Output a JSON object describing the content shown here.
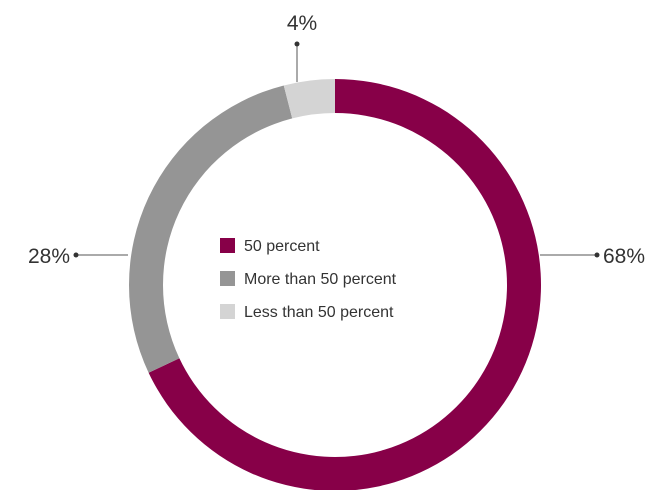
{
  "chart_data": {
    "type": "pie",
    "variant": "donut",
    "title": "",
    "start_angle_deg": 0,
    "direction": "clockwise",
    "series": [
      {
        "name": "",
        "slices": [
          {
            "label": "50 percent",
            "value": 68,
            "display": "68%",
            "color": "#870048"
          },
          {
            "label": "More than 50 percent",
            "value": 28,
            "display": "28%",
            "color": "#959595"
          },
          {
            "label": "Less than 50 percent",
            "value": 4,
            "display": "4%",
            "color": "#d4d4d4"
          }
        ]
      }
    ],
    "legend": {
      "placement": "center",
      "entries": [
        "50 percent",
        "More than 50 percent",
        "Less than 50 percent"
      ]
    },
    "value_labels_outside": true
  }
}
